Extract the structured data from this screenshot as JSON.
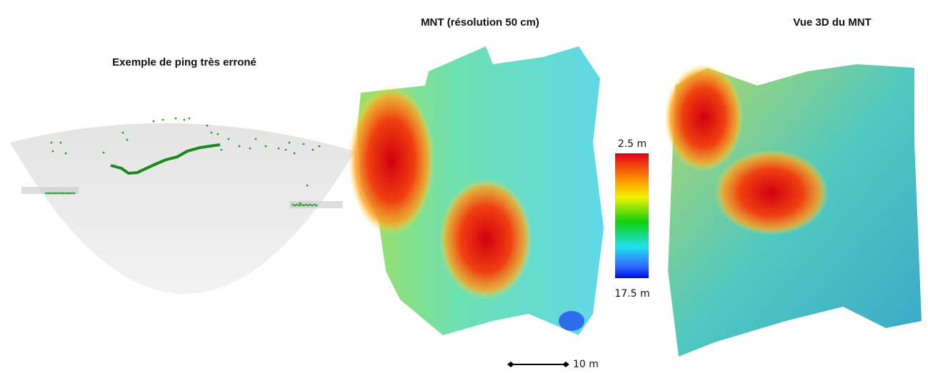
{
  "panels": [
    {
      "title": "Exemple de ping très erroné"
    },
    {
      "title": "MNT (résolution 50 cm)",
      "colorbar": {
        "top_label": "2.5 m",
        "bottom_label": "17.5 m"
      },
      "scale_bar": "10 m"
    },
    {
      "title": "Vue 3D du MNT"
    }
  ]
}
